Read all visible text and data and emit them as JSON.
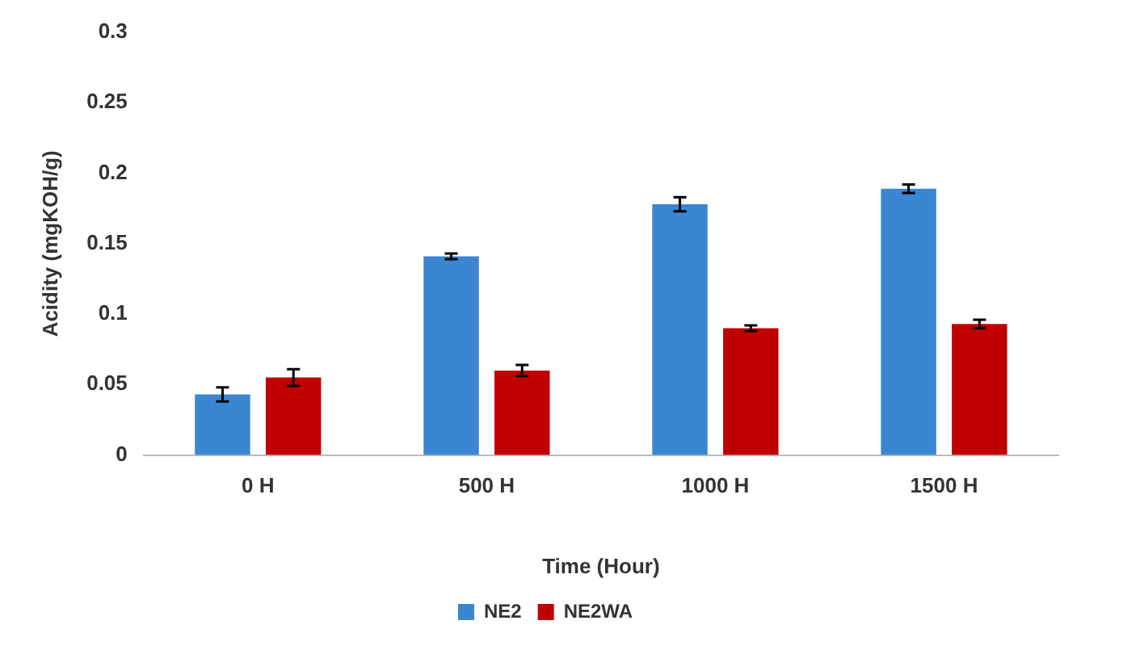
{
  "chart_data": {
    "type": "bar",
    "xlabel": "Time (Hour)",
    "ylabel": "Acidity (mgKOH/g)",
    "categories": [
      "0 H",
      "500 H",
      "1000 H",
      "1500 H"
    ],
    "series": [
      {
        "name": "NE2",
        "color": "#3a86d0",
        "values": [
          0.043,
          0.141,
          0.178,
          0.189
        ],
        "errors": [
          0.005,
          0.002,
          0.005,
          0.003
        ]
      },
      {
        "name": "NE2WA",
        "color": "#c00000",
        "values": [
          0.055,
          0.06,
          0.09,
          0.093
        ],
        "errors": [
          0.006,
          0.004,
          0.002,
          0.003
        ]
      }
    ],
    "ylim": [
      0,
      0.3
    ],
    "yticks": [
      0,
      0.05,
      0.1,
      0.15,
      0.2,
      0.25,
      0.3
    ],
    "grid": false,
    "legend": "bottom"
  }
}
